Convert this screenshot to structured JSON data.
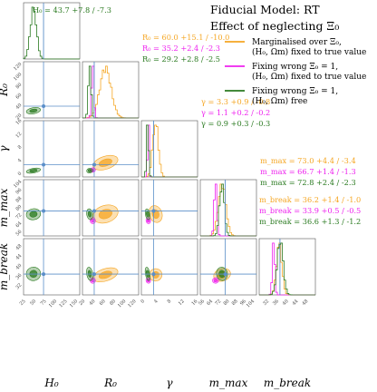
{
  "chart_data": {
    "type": "corner",
    "title_lines": [
      "Fiducial Model: RT",
      "Effect of neglecting Ξ₀"
    ],
    "parameters": [
      {
        "key": "H0",
        "label": "H₀",
        "range": [
          20,
          155
        ],
        "ticks": [
          "25",
          "50",
          "75",
          "100",
          "125",
          "150"
        ],
        "truth": 68
      },
      {
        "key": "R0",
        "label": "R₀",
        "range": [
          15,
          125
        ],
        "ticks": [
          "20",
          "40",
          "60",
          "80",
          "100",
          "120"
        ],
        "truth": 38
      },
      {
        "key": "gamma",
        "label": "γ",
        "range": [
          -1,
          16
        ],
        "ticks": [
          "0",
          "4",
          "8",
          "12",
          "16"
        ],
        "truth": 2.7
      },
      {
        "key": "mmax",
        "label": "m_max",
        "range": [
          52,
          106
        ],
        "ticks": [
          "56",
          "64",
          "72",
          "80",
          "88",
          "96",
          "104"
        ],
        "truth": 76
      },
      {
        "key": "mbreak",
        "label": "m_break",
        "range": [
          28,
          51
        ],
        "ticks": [
          "32",
          "36",
          "40",
          "44",
          "48"
        ],
        "truth": 36.5
      }
    ],
    "series": [
      {
        "name": "Marginalised over Ξ₀, (H₀, Ωm) fixed to true value",
        "color": "#f5a623",
        "fixed": [
          "H0"
        ],
        "estimates": {
          "R0": "60.0 +15.1 / -10.0",
          "gamma": "3.3 +0.9 / -0.8",
          "mmax": "73.0 +4.4 / -3.4",
          "mbreak": "36.2 +1.4 / -1.0"
        },
        "means": {
          "R0": 60,
          "gamma": 3.3,
          "mmax": 73,
          "mbreak": 36.2
        },
        "sigmas": {
          "R0": 11,
          "gamma": 0.85,
          "mmax": 3.6,
          "mbreak": 1.1
        }
      },
      {
        "name": "Fixing wrong Ξ₀ = 1, (H₀, Ωm) fixed to true value",
        "color": "#ee22ee",
        "fixed": [
          "H0"
        ],
        "estimates": {
          "R0": "35.2 +2.4 / -2.3",
          "gamma": "1.1 +0.2 / -0.2",
          "mmax": "66.7 +1.4 / -1.3",
          "mbreak": "33.9 +0.5 / -0.5"
        },
        "means": {
          "R0": 35.2,
          "gamma": 1.1,
          "mmax": 66.7,
          "mbreak": 33.9
        },
        "sigmas": {
          "R0": 2.3,
          "gamma": 0.2,
          "mmax": 1.3,
          "mbreak": 0.5
        }
      },
      {
        "name": "Fixing wrong Ξ₀ = 1, (H₀, Ωm) free",
        "color": "#2a7a20",
        "fixed": [],
        "estimates": {
          "H0": "43.7 +7.8 / -7.3",
          "R0": "29.2 +2.8 / -2.5",
          "gamma": "0.9 +0.3 / -0.3",
          "mmax": "72.8 +2.4 / -2.3",
          "mbreak": "36.6 +1.3 / -1.2"
        },
        "means": {
          "H0": 43.7,
          "R0": 29.2,
          "gamma": 0.9,
          "mmax": 72.8,
          "mbreak": 36.6
        },
        "sigmas": {
          "H0": 7.5,
          "R0": 2.6,
          "gamma": 0.3,
          "mmax": 2.3,
          "mbreak": 1.2
        }
      }
    ],
    "truth_color": "#5b8fc9",
    "legend_position": "top-right"
  }
}
